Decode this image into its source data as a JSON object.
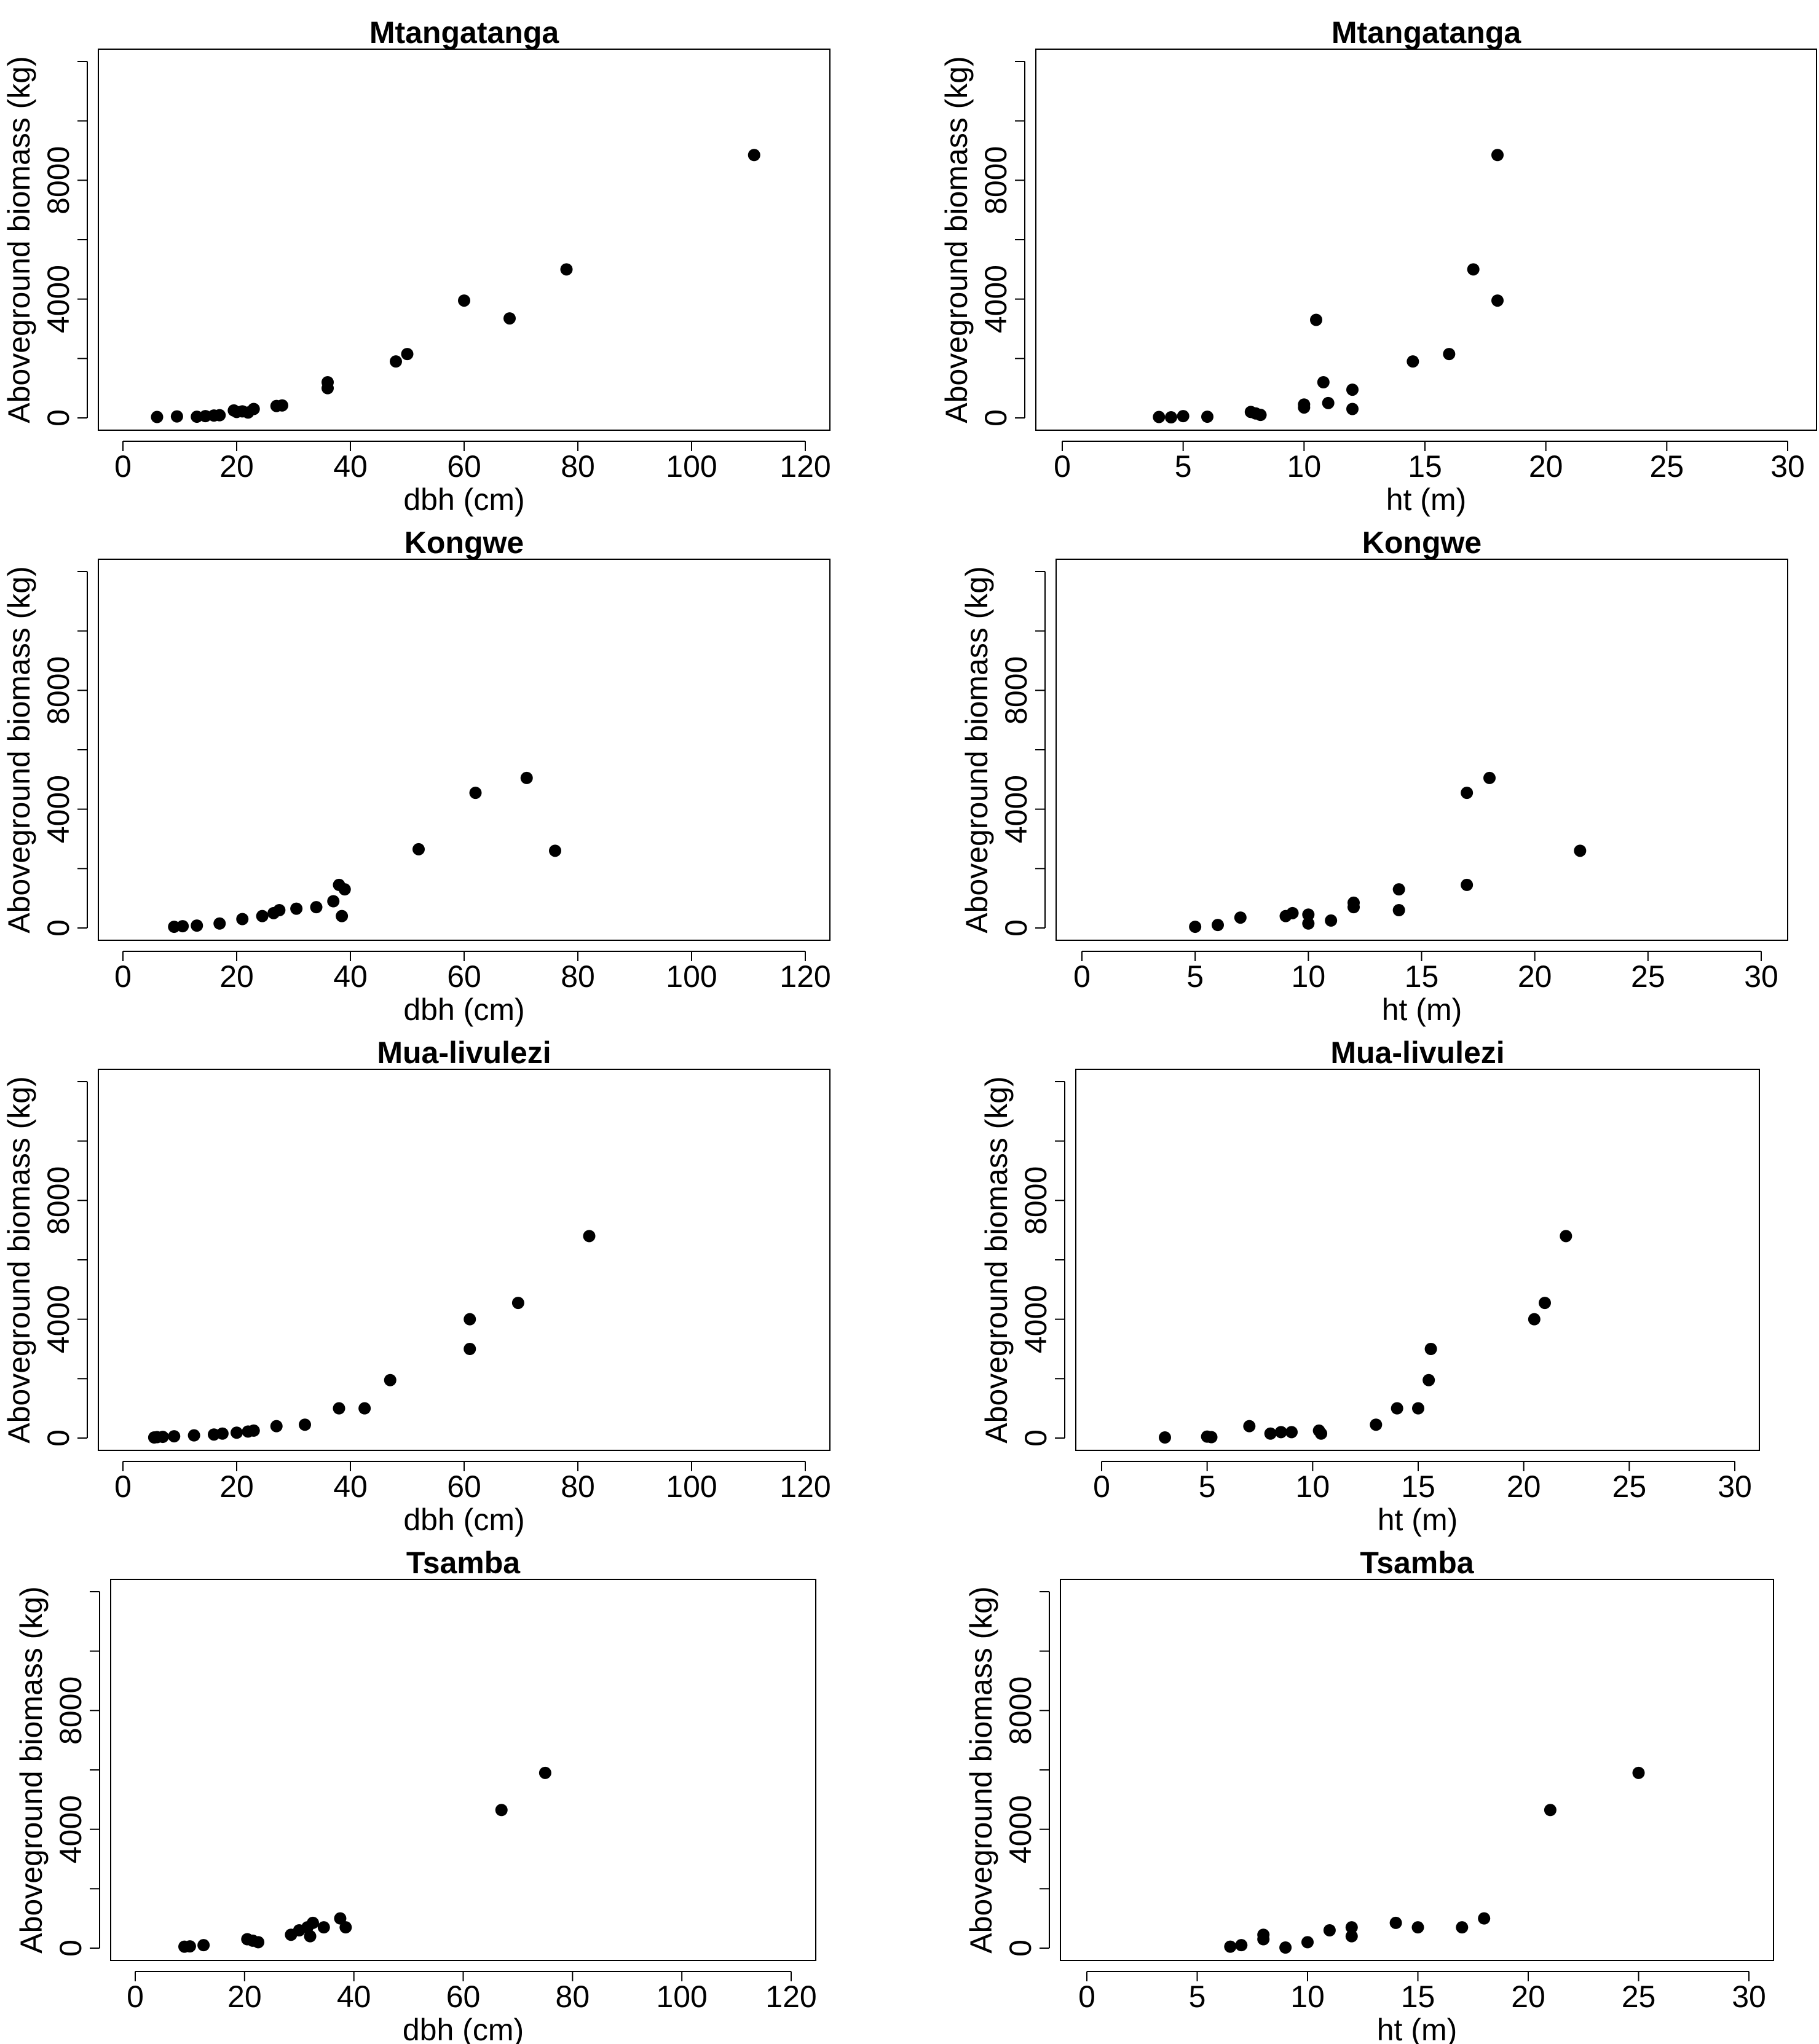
{
  "chart_data": [
    {
      "type": "scatter",
      "title": "Mtangatanga",
      "xlabel": "dbh (cm)",
      "ylabel": "Aboveground biomass (kg)",
      "xlim": [
        0,
        120
      ],
      "ylim": [
        0,
        12000
      ],
      "xticks": [
        0,
        20,
        40,
        60,
        80,
        100,
        120
      ],
      "yticks": [
        0,
        4000,
        8000
      ],
      "x": [
        6,
        9.5,
        13,
        14.5,
        16,
        17,
        19.5,
        20,
        21,
        22,
        23,
        27,
        28,
        36,
        36,
        48,
        50,
        60,
        68,
        78,
        111
      ],
      "y": [
        30,
        50,
        40,
        60,
        80,
        90,
        250,
        200,
        220,
        180,
        300,
        400,
        420,
        1000,
        1200,
        1900,
        2150,
        3950,
        3350,
        5000,
        8850
      ]
    },
    {
      "type": "scatter",
      "title": "Mtangatanga",
      "xlabel": "ht (m)",
      "ylabel": "Aboveground biomass (kg)",
      "xlim": [
        0,
        30
      ],
      "ylim": [
        0,
        12000
      ],
      "xticks": [
        0,
        5,
        10,
        15,
        20,
        25,
        30
      ],
      "yticks": [
        0,
        4000,
        8000
      ],
      "x": [
        4,
        4.5,
        5,
        6,
        7.8,
        8,
        8.2,
        10,
        10,
        10.5,
        10.8,
        11,
        12,
        12,
        14.5,
        16,
        17,
        18,
        18
      ],
      "y": [
        30,
        20,
        60,
        40,
        200,
        150,
        100,
        450,
        350,
        3300,
        1200,
        500,
        950,
        300,
        1900,
        2150,
        5000,
        3950,
        8850
      ]
    },
    {
      "type": "scatter",
      "title": "Kongwe",
      "xlabel": "dbh (cm)",
      "ylabel": "Aboveground biomass (kg)",
      "xlim": [
        0,
        120
      ],
      "ylim": [
        0,
        12000
      ],
      "xticks": [
        0,
        20,
        40,
        60,
        80,
        100,
        120
      ],
      "yticks": [
        0,
        4000,
        8000
      ],
      "x": [
        9,
        10.5,
        13,
        17,
        21,
        24.5,
        26.5,
        27.5,
        30.5,
        34,
        37,
        38,
        38.5,
        39,
        52,
        62,
        71,
        76
      ],
      "y": [
        40,
        60,
        80,
        150,
        300,
        400,
        500,
        600,
        650,
        700,
        900,
        1450,
        400,
        1300,
        2650,
        4550,
        5050,
        2600
      ]
    },
    {
      "type": "scatter",
      "title": "Kongwe",
      "xlabel": "ht (m)",
      "ylabel": "Aboveground biomass (kg)",
      "xlim": [
        0,
        30
      ],
      "ylim": [
        0,
        12000
      ],
      "xticks": [
        0,
        5,
        10,
        15,
        20,
        25,
        30
      ],
      "yticks": [
        0,
        4000,
        8000
      ],
      "x": [
        5,
        6,
        7,
        9,
        9.3,
        10,
        10,
        11,
        12,
        12,
        14,
        14,
        17,
        17,
        18,
        22
      ],
      "y": [
        40,
        100,
        350,
        400,
        500,
        450,
        150,
        250,
        700,
        850,
        600,
        1300,
        1450,
        4550,
        5050,
        2600
      ]
    },
    {
      "type": "scatter",
      "title": "Mua-livulezi",
      "xlabel": "dbh (cm)",
      "ylabel": "Aboveground biomass (kg)",
      "xlim": [
        0,
        120
      ],
      "ylim": [
        0,
        12000
      ],
      "xticks": [
        0,
        20,
        40,
        60,
        80,
        100,
        120
      ],
      "yticks": [
        0,
        4000,
        8000
      ],
      "x": [
        5.5,
        6,
        7,
        9,
        12.5,
        16,
        17.5,
        20,
        22,
        23,
        27,
        32,
        38,
        42.5,
        47,
        61,
        61,
        69.5,
        82
      ],
      "y": [
        20,
        30,
        40,
        60,
        90,
        120,
        150,
        180,
        220,
        250,
        400,
        450,
        1000,
        1000,
        1950,
        3000,
        4000,
        4550,
        6800
      ]
    },
    {
      "type": "scatter",
      "title": "Mua-livulezi",
      "xlabel": "ht (m)",
      "ylabel": "Aboveground biomass (kg)",
      "xlim": [
        0,
        30
      ],
      "ylim": [
        0,
        12000
      ],
      "xticks": [
        0,
        5,
        10,
        15,
        20,
        25,
        30
      ],
      "yticks": [
        0,
        4000,
        8000
      ],
      "x": [
        3,
        5,
        5.2,
        7,
        8,
        8.5,
        9,
        10.3,
        10.4,
        13,
        14,
        15,
        15.5,
        15.6,
        20.5,
        21,
        22
      ],
      "y": [
        20,
        50,
        30,
        400,
        150,
        200,
        200,
        250,
        150,
        450,
        1000,
        1000,
        1950,
        3000,
        4000,
        4550,
        6800
      ]
    },
    {
      "type": "scatter",
      "title": "Tsamba",
      "xlabel": "dbh (cm)",
      "ylabel": "Aboveground biomass (kg)",
      "xlim": [
        0,
        120
      ],
      "ylim": [
        0,
        12000
      ],
      "xticks": [
        0,
        20,
        40,
        60,
        80,
        100,
        120
      ],
      "yticks": [
        0,
        4000,
        8000
      ],
      "x": [
        9,
        10,
        12.5,
        20.5,
        21.5,
        22.5,
        28.5,
        30,
        31.5,
        32,
        32.5,
        34.5,
        37.5,
        38.5,
        67,
        75
      ],
      "y": [
        50,
        60,
        100,
        300,
        250,
        200,
        450,
        600,
        700,
        400,
        850,
        700,
        1000,
        700,
        4650,
        5900
      ]
    },
    {
      "type": "scatter",
      "title": "Tsamba",
      "xlabel": "ht (m)",
      "ylabel": "Aboveground biomass (kg)",
      "xlim": [
        0,
        30
      ],
      "ylim": [
        0,
        12000
      ],
      "xticks": [
        0,
        5,
        10,
        15,
        20,
        25,
        30
      ],
      "yticks": [
        0,
        4000,
        8000
      ],
      "x": [
        6.5,
        7,
        8,
        8,
        9,
        10,
        11,
        12,
        12,
        14,
        15,
        17,
        18,
        21,
        25
      ],
      "y": [
        50,
        100,
        450,
        300,
        20,
        200,
        600,
        700,
        400,
        850,
        700,
        700,
        1000,
        4650,
        5900
      ]
    }
  ]
}
